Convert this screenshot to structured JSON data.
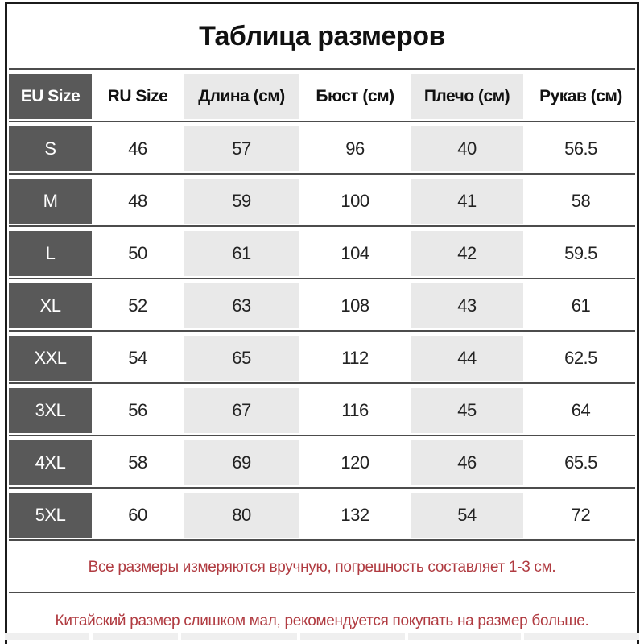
{
  "chart_data": {
    "type": "table",
    "title": "Таблица размеров",
    "columns": [
      "EU Size",
      "RU Size",
      "Длина (см)",
      "Бюст (см)",
      "Плечо (см)",
      "Рукав (см)"
    ],
    "rows": [
      [
        "S",
        "46",
        "57",
        "96",
        "40",
        "56.5"
      ],
      [
        "M",
        "48",
        "59",
        "100",
        "41",
        "58"
      ],
      [
        "L",
        "50",
        "61",
        "104",
        "42",
        "59.5"
      ],
      [
        "XL",
        "52",
        "63",
        "108",
        "43",
        "61"
      ],
      [
        "XXL",
        "54",
        "65",
        "112",
        "44",
        "62.5"
      ],
      [
        "3XL",
        "56",
        "67",
        "116",
        "45",
        "64"
      ],
      [
        "4XL",
        "58",
        "69",
        "120",
        "46",
        "65.5"
      ],
      [
        "5XL",
        "60",
        "80",
        "132",
        "54",
        "72"
      ]
    ],
    "notes": [
      "Все размеры измеряются вручную, погрешность составляет 1-3 см.",
      "Китайский размер слишком мал, рекомендуется покупать на размер больше."
    ],
    "layout_hints": {
      "header_dark_column": "EU Size",
      "shaded_columns": [
        "Длина (см)",
        "Плечо (см)"
      ]
    }
  },
  "colors": {
    "dark_cell": "#595959",
    "shaded_cell": "#e9e9e9",
    "separator_line": "#4c4c4c",
    "outer_border": "#1b1b1b",
    "note_text": "#b03b41",
    "header_text": "#111111",
    "body_text": "#222222"
  }
}
